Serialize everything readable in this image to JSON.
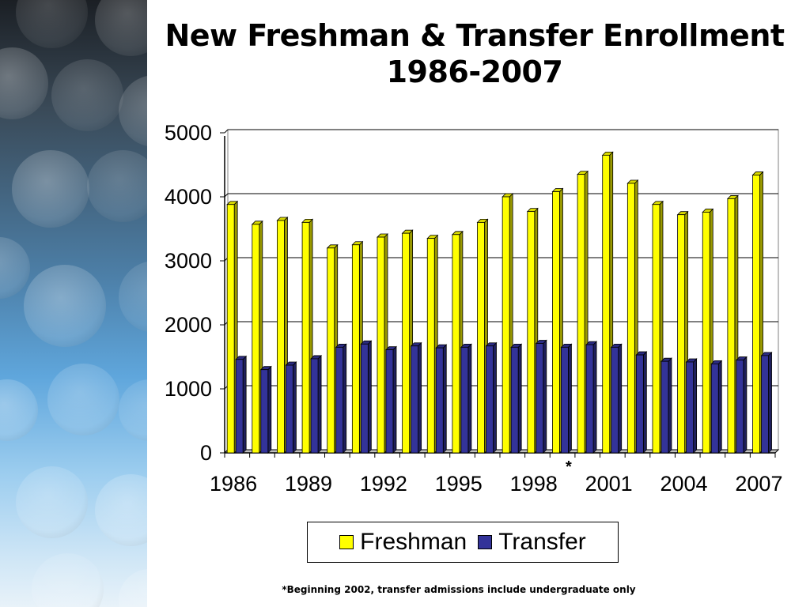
{
  "slide": {
    "title_line1": "New Freshman & Transfer Enrollment",
    "title_line2": "1986-2007",
    "footnote": "*Beginning 2002, transfer admissions include undergraduate only",
    "marker": "*"
  },
  "chart_data": {
    "type": "bar",
    "title": "New Freshman & Transfer Enrollment 1986-2007",
    "categories": [
      "1986",
      "1987",
      "1988",
      "1989",
      "1990",
      "1991",
      "1992",
      "1993",
      "1994",
      "1995",
      "1996",
      "1997",
      "1998",
      "1999",
      "2000",
      "2001",
      "2002",
      "2003",
      "2004",
      "2005",
      "2006",
      "2007"
    ],
    "tick_labels": [
      "1986",
      "1989",
      "1992",
      "1995",
      "1998",
      "2001",
      "2004",
      "2007"
    ],
    "y_ticks": [
      "0",
      "1000",
      "2000",
      "3000",
      "4000",
      "5000"
    ],
    "ylim": [
      0,
      5000
    ],
    "grid": true,
    "legend_position": "bottom",
    "series": [
      {
        "name": "Freshman",
        "color": "#ffff00",
        "values": [
          3880,
          3570,
          3630,
          3600,
          3200,
          3250,
          3370,
          3430,
          3350,
          3410,
          3600,
          4000,
          3770,
          4080,
          4350,
          4650,
          4210,
          3880,
          3720,
          3760,
          3970,
          4340
        ]
      },
      {
        "name": "Transfer",
        "color": "#333399",
        "values": [
          1460,
          1300,
          1370,
          1470,
          1650,
          1700,
          1610,
          1670,
          1640,
          1650,
          1670,
          1650,
          1710,
          1650,
          1690,
          1650,
          1530,
          1430,
          1420,
          1390,
          1450,
          1520
        ]
      }
    ]
  }
}
